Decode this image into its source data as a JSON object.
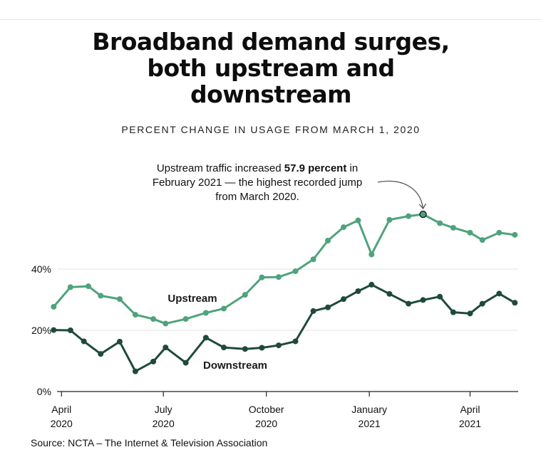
{
  "title": "Broadband demand surges,\nboth upstream and\ndownstream",
  "subtitle": "PERCENT CHANGE IN USAGE FROM MARCH 1, 2020",
  "source": "Source: NCTA – The Internet & Television Association",
  "colors": {
    "upstream": "#4fa37c",
    "downstream": "#1f4a3a",
    "grid": "#e3e3e3",
    "axis": "#222222"
  },
  "chart_data": {
    "type": "line",
    "ylim": [
      0,
      60
    ],
    "y_ticks": [
      {
        "value": 0,
        "label": "0%"
      },
      {
        "value": 20,
        "label": "20%"
      },
      {
        "value": 40,
        "label": "40%"
      }
    ],
    "x_range": [
      "2020-03-28",
      "2021-05-14"
    ],
    "x_ticks": [
      {
        "date": "2020-04-01",
        "label": [
          "April",
          "2020"
        ]
      },
      {
        "date": "2020-07-01",
        "label": [
          "July",
          "2020"
        ]
      },
      {
        "date": "2020-10-01",
        "label": [
          "October",
          "2020"
        ]
      },
      {
        "date": "2021-01-01",
        "label": [
          "January",
          "2021"
        ]
      },
      {
        "date": "2021-04-01",
        "label": [
          "April",
          "2021"
        ]
      }
    ],
    "series": [
      {
        "name": "Upstream",
        "points": [
          [
            "2020-03-25",
            27.7
          ],
          [
            "2020-04-09",
            34.1
          ],
          [
            "2020-04-25",
            34.4
          ],
          [
            "2020-05-06",
            31.3
          ],
          [
            "2020-05-23",
            30.2
          ],
          [
            "2020-06-06",
            25.1
          ],
          [
            "2020-06-22",
            23.7
          ],
          [
            "2020-07-03",
            22.2
          ],
          [
            "2020-07-21",
            23.7
          ],
          [
            "2020-08-08",
            25.7
          ],
          [
            "2020-08-24",
            27.1
          ],
          [
            "2020-09-12",
            31.6
          ],
          [
            "2020-09-27",
            37.3
          ],
          [
            "2020-10-12",
            37.4
          ],
          [
            "2020-10-27",
            39.3
          ],
          [
            "2020-11-12",
            43.2
          ],
          [
            "2020-11-25",
            49.3
          ],
          [
            "2020-12-09",
            53.7
          ],
          [
            "2020-12-22",
            55.9
          ],
          [
            "2021-01-03",
            44.8
          ],
          [
            "2021-01-19",
            56.1
          ],
          [
            "2021-02-05",
            57.3
          ],
          [
            "2021-02-18",
            57.9
          ],
          [
            "2021-03-05",
            55.0
          ],
          [
            "2021-03-17",
            53.5
          ],
          [
            "2021-04-01",
            51.9
          ],
          [
            "2021-04-12",
            49.5
          ],
          [
            "2021-04-27",
            51.9
          ],
          [
            "2021-05-11",
            51.2
          ]
        ]
      },
      {
        "name": "Downstream",
        "points": [
          [
            "2020-03-25",
            20.1
          ],
          [
            "2020-04-09",
            20.0
          ],
          [
            "2020-04-21",
            16.4
          ],
          [
            "2020-05-06",
            12.3
          ],
          [
            "2020-05-23",
            16.3
          ],
          [
            "2020-06-06",
            6.6
          ],
          [
            "2020-06-22",
            9.8
          ],
          [
            "2020-07-03",
            14.4
          ],
          [
            "2020-07-21",
            9.4
          ],
          [
            "2020-08-08",
            17.6
          ],
          [
            "2020-08-24",
            14.4
          ],
          [
            "2020-09-12",
            13.9
          ],
          [
            "2020-09-27",
            14.3
          ],
          [
            "2020-10-12",
            15.1
          ],
          [
            "2020-10-27",
            16.4
          ],
          [
            "2020-11-12",
            26.3
          ],
          [
            "2020-11-25",
            27.5
          ],
          [
            "2020-12-09",
            30.2
          ],
          [
            "2020-12-22",
            32.8
          ],
          [
            "2021-01-03",
            34.9
          ],
          [
            "2021-01-19",
            31.9
          ],
          [
            "2021-02-05",
            28.7
          ],
          [
            "2021-02-18",
            29.9
          ],
          [
            "2021-03-05",
            31.0
          ],
          [
            "2021-03-17",
            25.9
          ],
          [
            "2021-04-01",
            25.5
          ],
          [
            "2021-04-12",
            28.7
          ],
          [
            "2021-04-27",
            32.0
          ],
          [
            "2021-05-11",
            29.0
          ]
        ]
      }
    ],
    "labels": {
      "upstream": "Upstream",
      "downstream": "Downstream"
    },
    "annotation": {
      "line1_pre": "Upstream traffic increased ",
      "line1_bold": "57.9 percent",
      "line1_post": " in",
      "line2": "February 2021 — the highest recorded jump",
      "line3": "from March 2020.",
      "target": [
        "2021-02-18",
        57.9
      ]
    }
  }
}
